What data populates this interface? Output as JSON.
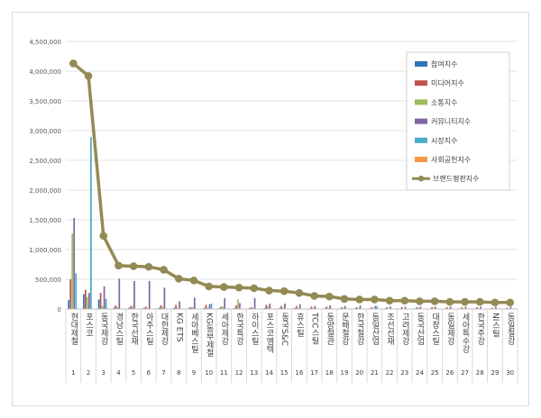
{
  "chart_data": {
    "type": "bar",
    "title": "",
    "xlabel": "",
    "ylabel": "",
    "ylim": [
      0,
      4500000
    ],
    "y_ticks": [
      "0",
      "500,000",
      "1,000,000",
      "1,500,000",
      "2,000,000",
      "2,500,000",
      "3,000,000",
      "3,500,000",
      "4,000,000",
      "4,500,000"
    ],
    "grid": true,
    "legend_position": "top-right",
    "categories": [
      "현대제철",
      "포스코",
      "동국제강",
      "경남스틸",
      "한국선재",
      "아주스틸",
      "대한제강",
      "KG ETS",
      "세아베스틸",
      "KG동부제철",
      "세아제강",
      "한국특강",
      "하이스틸",
      "포스코엠텍",
      "동국S&C",
      "휴스틸",
      "TCC스틸",
      "동양철관",
      "문배철강",
      "한국철강",
      "동일산업",
      "조선선재",
      "고려제강",
      "동국산업",
      "대창스틸",
      "동일제강",
      "세아특수강",
      "한국주강",
      "NI스틸",
      "동일철강"
    ],
    "ranks": [
      "1",
      "2",
      "3",
      "4",
      "5",
      "6",
      "7",
      "8",
      "9",
      "10",
      "11",
      "12",
      "13",
      "14",
      "15",
      "16",
      "17",
      "18",
      "19",
      "20",
      "21",
      "22",
      "23",
      "24",
      "25",
      "26",
      "27",
      "28",
      "29",
      "30"
    ],
    "series": [
      {
        "name": "참여지수",
        "color": "#2e75b6",
        "values": [
          150000,
          250000,
          160000,
          20000,
          20000,
          20000,
          20000,
          20000,
          20000,
          20000,
          15000,
          15000,
          15000,
          15000,
          15000,
          15000,
          10000,
          10000,
          10000,
          10000,
          10000,
          10000,
          10000,
          10000,
          10000,
          10000,
          10000,
          10000,
          10000,
          10000
        ]
      },
      {
        "name": "미디어지수",
        "color": "#c0504d",
        "values": [
          500000,
          320000,
          270000,
          60000,
          50000,
          40000,
          60000,
          70000,
          30000,
          70000,
          40000,
          60000,
          30000,
          70000,
          50000,
          50000,
          40000,
          40000,
          30000,
          30000,
          30000,
          30000,
          30000,
          30000,
          30000,
          30000,
          30000,
          30000,
          20000,
          20000
        ]
      },
      {
        "name": "소통지수",
        "color": "#9bbb59",
        "values": [
          1270000,
          200000,
          50000,
          30000,
          50000,
          20000,
          40000,
          20000,
          30000,
          20000,
          40000,
          160000,
          20000,
          40000,
          20000,
          20000,
          20000,
          20000,
          20000,
          20000,
          10000,
          10000,
          10000,
          20000,
          20000,
          10000,
          10000,
          10000,
          10000,
          10000
        ]
      },
      {
        "name": "커뮤니티지수",
        "color": "#8064a2",
        "values": [
          1530000,
          270000,
          380000,
          510000,
          470000,
          470000,
          360000,
          130000,
          190000,
          80000,
          180000,
          100000,
          180000,
          90000,
          90000,
          80000,
          50000,
          60000,
          50000,
          60000,
          50000,
          40000,
          40000,
          40000,
          40000,
          40000,
          40000,
          40000,
          40000,
          40000
        ]
      },
      {
        "name": "시장지수",
        "color": "#4bacc6",
        "values": [
          600000,
          2890000,
          170000,
          0,
          0,
          0,
          0,
          0,
          0,
          90000,
          0,
          0,
          0,
          0,
          0,
          0,
          0,
          0,
          0,
          0,
          50000,
          0,
          0,
          0,
          0,
          0,
          0,
          0,
          0,
          0
        ]
      },
      {
        "name": "사회공헌지수",
        "color": "#f79646",
        "values": [
          10000,
          10000,
          10000,
          0,
          0,
          0,
          0,
          0,
          0,
          0,
          0,
          0,
          0,
          0,
          0,
          0,
          0,
          0,
          0,
          0,
          0,
          0,
          0,
          0,
          0,
          0,
          0,
          0,
          0,
          0
        ]
      }
    ],
    "line_series": {
      "name": "브랜드평판지수",
      "color": "#948a54",
      "values": [
        4130000,
        3920000,
        1230000,
        730000,
        720000,
        710000,
        660000,
        510000,
        480000,
        380000,
        370000,
        360000,
        350000,
        310000,
        300000,
        270000,
        220000,
        210000,
        170000,
        160000,
        160000,
        140000,
        140000,
        130000,
        130000,
        120000,
        120000,
        120000,
        110000,
        110000
      ]
    }
  }
}
